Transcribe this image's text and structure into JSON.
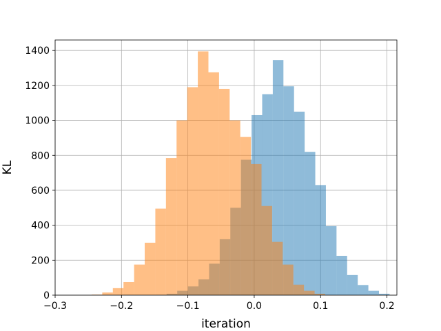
{
  "chart_data": {
    "type": "histogram",
    "title": "",
    "xlabel": "iteration",
    "ylabel": "KL",
    "xlim": [
      -0.3,
      0.215
    ],
    "ylim": [
      0,
      1460
    ],
    "grid": true,
    "legend": "none",
    "xticks": [
      -0.3,
      -0.2,
      -0.1,
      0.0,
      0.1,
      0.2
    ],
    "xtick_labels": [
      "−0.3",
      "−0.2",
      "−0.1",
      "0.0",
      "0.1",
      "0.2"
    ],
    "yticks": [
      0,
      200,
      400,
      600,
      800,
      1000,
      1200,
      1400
    ],
    "series": [
      {
        "color": "#1f77b4",
        "alpha": 0.5,
        "bins": [
          {
            "x0": -0.148,
            "x1": -0.132,
            "count": 2
          },
          {
            "x0": -0.132,
            "x1": -0.116,
            "count": 8
          },
          {
            "x0": -0.116,
            "x1": -0.1,
            "count": 25
          },
          {
            "x0": -0.1,
            "x1": -0.084,
            "count": 50
          },
          {
            "x0": -0.084,
            "x1": -0.068,
            "count": 90
          },
          {
            "x0": -0.068,
            "x1": -0.052,
            "count": 180
          },
          {
            "x0": -0.052,
            "x1": -0.036,
            "count": 320
          },
          {
            "x0": -0.036,
            "x1": -0.02,
            "count": 500
          },
          {
            "x0": -0.02,
            "x1": -0.004,
            "count": 775
          },
          {
            "x0": -0.004,
            "x1": 0.012,
            "count": 1030
          },
          {
            "x0": 0.012,
            "x1": 0.028,
            "count": 1150
          },
          {
            "x0": 0.028,
            "x1": 0.044,
            "count": 1345
          },
          {
            "x0": 0.044,
            "x1": 0.06,
            "count": 1195
          },
          {
            "x0": 0.06,
            "x1": 0.076,
            "count": 1050
          },
          {
            "x0": 0.076,
            "x1": 0.092,
            "count": 820
          },
          {
            "x0": 0.092,
            "x1": 0.108,
            "count": 630
          },
          {
            "x0": 0.108,
            "x1": 0.124,
            "count": 395
          },
          {
            "x0": 0.124,
            "x1": 0.14,
            "count": 225
          },
          {
            "x0": 0.14,
            "x1": 0.156,
            "count": 115
          },
          {
            "x0": 0.156,
            "x1": 0.172,
            "count": 58
          },
          {
            "x0": 0.172,
            "x1": 0.188,
            "count": 25
          },
          {
            "x0": 0.188,
            "x1": 0.204,
            "count": 8
          }
        ]
      },
      {
        "color": "#ff7f0e",
        "alpha": 0.5,
        "bins": [
          {
            "x0": -0.245,
            "x1": -0.229,
            "count": 3
          },
          {
            "x0": -0.229,
            "x1": -0.213,
            "count": 15
          },
          {
            "x0": -0.213,
            "x1": -0.197,
            "count": 40
          },
          {
            "x0": -0.197,
            "x1": -0.181,
            "count": 75
          },
          {
            "x0": -0.181,
            "x1": -0.165,
            "count": 175
          },
          {
            "x0": -0.165,
            "x1": -0.149,
            "count": 300
          },
          {
            "x0": -0.149,
            "x1": -0.133,
            "count": 495
          },
          {
            "x0": -0.133,
            "x1": -0.117,
            "count": 785
          },
          {
            "x0": -0.117,
            "x1": -0.101,
            "count": 1000
          },
          {
            "x0": -0.101,
            "x1": -0.085,
            "count": 1190
          },
          {
            "x0": -0.085,
            "x1": -0.069,
            "count": 1395
          },
          {
            "x0": -0.069,
            "x1": -0.053,
            "count": 1275
          },
          {
            "x0": -0.053,
            "x1": -0.037,
            "count": 1180
          },
          {
            "x0": -0.037,
            "x1": -0.021,
            "count": 1000
          },
          {
            "x0": -0.021,
            "x1": -0.005,
            "count": 905
          },
          {
            "x0": -0.005,
            "x1": 0.011,
            "count": 750
          },
          {
            "x0": 0.011,
            "x1": 0.027,
            "count": 510
          },
          {
            "x0": 0.027,
            "x1": 0.043,
            "count": 305
          },
          {
            "x0": 0.043,
            "x1": 0.059,
            "count": 175
          },
          {
            "x0": 0.059,
            "x1": 0.075,
            "count": 60
          },
          {
            "x0": 0.075,
            "x1": 0.091,
            "count": 25
          },
          {
            "x0": 0.091,
            "x1": 0.107,
            "count": 8
          }
        ]
      }
    ]
  }
}
